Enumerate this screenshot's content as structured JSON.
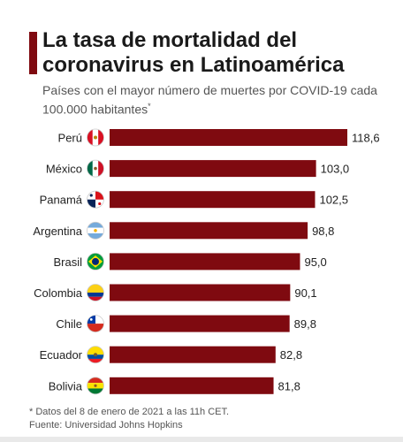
{
  "title": "La tasa de mortalidad del coronavirus en Latinoamérica",
  "subtitle": "Países con el mayor número de muertes por COVID-19 cada 100.000 habitantes",
  "subtitle_mark": "*",
  "footnote": "* Datos del 8 de enero de 2021 a las 11h CET.",
  "source": "Fuente: Universidad Johns Hopkins",
  "colors": {
    "bar": "#7f0a10",
    "accent": "#7f0a10",
    "text": "#333333"
  },
  "chart_data": {
    "type": "bar",
    "orientation": "horizontal",
    "categories": [
      "Perú",
      "México",
      "Panamá",
      "Argentina",
      "Brasil",
      "Colombia",
      "Chile",
      "Ecuador",
      "Bolivia"
    ],
    "values": [
      118.6,
      103.0,
      102.5,
      98.8,
      95.0,
      90.1,
      89.8,
      82.8,
      81.8
    ],
    "value_labels": [
      "118,6",
      "103,0",
      "102,5",
      "98,8",
      "95,0",
      "90,1",
      "89,8",
      "82,8",
      "81,8"
    ],
    "icons": [
      "peru-flag-icon",
      "mexico-flag-icon",
      "panama-flag-icon",
      "argentina-flag-icon",
      "brazil-flag-icon",
      "colombia-flag-icon",
      "chile-flag-icon",
      "ecuador-flag-icon",
      "bolivia-flag-icon"
    ],
    "title": "La tasa de mortalidad del coronavirus en Latinoamérica",
    "xlabel": "",
    "ylabel": "",
    "xlim": [
      0,
      118.6
    ],
    "grid": false
  }
}
